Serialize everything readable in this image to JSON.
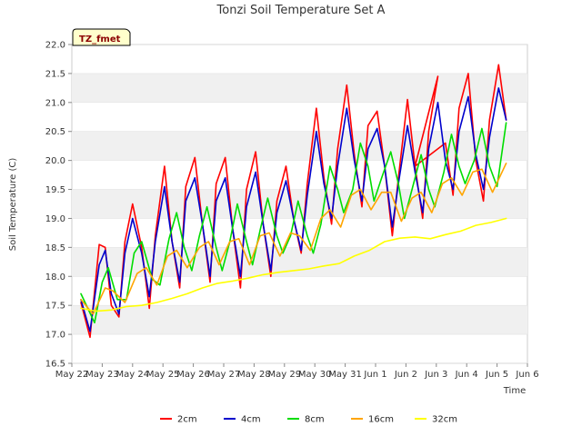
{
  "chart_data": {
    "type": "line",
    "title": "Tonzi Soil Temperature Set A",
    "xlabel": "Time",
    "ylabel": "Soil Temperature (C)",
    "tag": "TZ_fmet",
    "ylim": [
      16.5,
      22.0
    ],
    "yticks": [
      16.5,
      17.0,
      17.5,
      18.0,
      18.5,
      19.0,
      19.5,
      20.0,
      20.5,
      21.0,
      21.5,
      22.0
    ],
    "ytick_labels": [
      "16.5",
      "17.0",
      "17.5",
      "18.0",
      "18.5",
      "19.0",
      "19.5",
      "20.0",
      "20.5",
      "21.0",
      "21.5",
      "22.0"
    ],
    "xlim": [
      0,
      15
    ],
    "xticks": [
      0,
      1,
      2,
      3,
      4,
      5,
      6,
      7,
      8,
      9,
      10,
      11,
      12,
      13,
      14,
      15
    ],
    "xtick_labels": [
      "May 22",
      "May 23",
      "May 24",
      "May 25",
      "May 26",
      "May 27",
      "May 28",
      "May 29",
      "May 30",
      "May 31",
      "Jun 1",
      "Jun 2",
      "Jun 3",
      "Jun 4",
      "Jun 5",
      "Jun 6"
    ],
    "grid": "horizontal bands",
    "legend_position": "bottom",
    "series": [
      {
        "name": "2cm",
        "color": "#ff0000",
        "x": [
          0.3,
          0.6,
          0.9,
          1.1,
          1.3,
          1.55,
          1.75,
          2.0,
          2.3,
          2.55,
          2.75,
          3.05,
          3.3,
          3.55,
          3.75,
          4.05,
          4.3,
          4.55,
          4.75,
          5.05,
          5.3,
          5.55,
          5.75,
          6.05,
          6.3,
          6.55,
          6.75,
          7.05,
          7.3,
          7.55,
          7.75,
          8.05,
          8.3,
          8.55,
          8.75,
          9.05,
          9.3,
          9.55,
          9.75,
          10.05,
          10.3,
          10.55,
          10.75,
          11.05,
          11.3,
          11.55,
          11.75,
          12.05,
          11.3,
          12.3,
          12.55,
          12.75,
          13.05,
          13.3,
          13.55,
          13.75,
          14.05,
          14.3
        ],
        "y": [
          17.55,
          16.95,
          18.55,
          18.5,
          17.5,
          17.3,
          18.6,
          19.25,
          18.5,
          17.45,
          18.7,
          19.9,
          18.6,
          17.8,
          19.55,
          20.05,
          18.9,
          17.9,
          19.6,
          20.05,
          18.8,
          17.8,
          19.5,
          20.15,
          18.9,
          18.0,
          19.3,
          19.9,
          19.0,
          18.4,
          19.6,
          20.9,
          19.7,
          18.9,
          20.2,
          21.3,
          20.1,
          19.2,
          20.6,
          20.85,
          19.9,
          18.7,
          19.7,
          21.05,
          19.9,
          19.0,
          20.5,
          21.45,
          19.9,
          20.3,
          19.4,
          20.9,
          21.5,
          20.0,
          19.3,
          20.7,
          21.65,
          20.7
        ]
      },
      {
        "name": "4cm",
        "color": "#0000cc",
        "x": [
          0.3,
          0.6,
          0.9,
          1.1,
          1.3,
          1.55,
          1.75,
          2.0,
          2.3,
          2.55,
          2.75,
          3.05,
          3.3,
          3.55,
          3.75,
          4.05,
          4.3,
          4.55,
          4.75,
          5.05,
          5.3,
          5.55,
          5.75,
          6.05,
          6.3,
          6.55,
          6.75,
          7.05,
          7.3,
          7.55,
          7.75,
          8.05,
          8.3,
          8.55,
          8.75,
          9.05,
          9.3,
          9.55,
          9.75,
          10.05,
          10.3,
          10.55,
          10.75,
          11.05,
          11.3,
          11.55,
          11.75,
          12.05,
          12.3,
          12.55,
          12.75,
          13.05,
          13.3,
          13.55,
          13.75,
          14.05,
          14.3
        ],
        "y": [
          17.6,
          17.05,
          18.2,
          18.45,
          17.7,
          17.35,
          18.4,
          19.0,
          18.4,
          17.65,
          18.6,
          19.55,
          18.6,
          17.9,
          19.3,
          19.7,
          18.9,
          18.0,
          19.3,
          19.7,
          18.8,
          18.0,
          19.2,
          19.8,
          18.9,
          18.1,
          19.1,
          19.65,
          19.0,
          18.45,
          19.4,
          20.5,
          19.6,
          19.0,
          19.9,
          20.9,
          20.0,
          19.3,
          20.2,
          20.55,
          19.9,
          18.85,
          19.6,
          20.6,
          19.8,
          19.1,
          20.2,
          21.0,
          20.0,
          19.5,
          20.5,
          21.1,
          20.1,
          19.5,
          20.4,
          21.25,
          20.7
        ]
      },
      {
        "name": "8cm",
        "color": "#00dd00",
        "x": [
          0.3,
          0.75,
          1.0,
          1.2,
          1.5,
          1.8,
          2.05,
          2.3,
          2.65,
          2.9,
          3.2,
          3.45,
          3.7,
          3.95,
          4.2,
          4.45,
          4.75,
          4.95,
          5.2,
          5.45,
          5.75,
          5.95,
          6.2,
          6.45,
          6.75,
          6.95,
          7.2,
          7.45,
          7.75,
          7.95,
          8.2,
          8.5,
          8.75,
          8.95,
          9.25,
          9.5,
          9.75,
          9.95,
          10.2,
          10.5,
          10.75,
          10.95,
          11.2,
          11.5,
          11.75,
          11.95,
          12.25,
          12.5,
          12.75,
          12.95,
          13.25,
          13.5,
          13.75,
          14.0,
          14.3
        ],
        "y": [
          17.7,
          17.2,
          17.9,
          18.15,
          17.6,
          17.6,
          18.4,
          18.6,
          17.95,
          17.85,
          18.65,
          19.1,
          18.5,
          18.1,
          18.7,
          19.2,
          18.5,
          18.1,
          18.6,
          19.25,
          18.6,
          18.2,
          18.8,
          19.35,
          18.7,
          18.4,
          18.7,
          19.3,
          18.7,
          18.4,
          18.9,
          19.9,
          19.5,
          19.1,
          19.5,
          20.3,
          19.9,
          19.3,
          19.7,
          20.15,
          19.6,
          19.0,
          19.5,
          20.1,
          19.5,
          19.2,
          19.8,
          20.45,
          19.9,
          19.6,
          20.0,
          20.55,
          19.9,
          19.55,
          20.65
        ]
      },
      {
        "name": "16cm",
        "color": "#ffa500",
        "x": [
          0.3,
          0.7,
          1.1,
          1.35,
          1.75,
          2.15,
          2.45,
          2.8,
          3.15,
          3.45,
          3.8,
          4.2,
          4.5,
          4.85,
          5.2,
          5.5,
          5.85,
          6.2,
          6.5,
          6.85,
          7.2,
          7.5,
          7.85,
          8.2,
          8.5,
          8.85,
          9.2,
          9.5,
          9.85,
          10.2,
          10.5,
          10.85,
          11.2,
          11.5,
          11.85,
          12.2,
          12.5,
          12.85,
          13.2,
          13.5,
          13.85,
          14.3
        ],
        "y": [
          17.6,
          17.35,
          17.8,
          17.75,
          17.55,
          18.05,
          18.15,
          17.85,
          18.35,
          18.45,
          18.15,
          18.5,
          18.6,
          18.2,
          18.6,
          18.65,
          18.2,
          18.7,
          18.75,
          18.35,
          18.75,
          18.7,
          18.45,
          19.0,
          19.15,
          18.85,
          19.4,
          19.5,
          19.15,
          19.45,
          19.45,
          18.95,
          19.35,
          19.45,
          19.1,
          19.6,
          19.7,
          19.4,
          19.8,
          19.85,
          19.45,
          19.95
        ]
      },
      {
        "name": "32cm",
        "color": "#ffff00",
        "x": [
          0.3,
          0.8,
          1.3,
          1.8,
          2.3,
          2.8,
          3.3,
          3.8,
          4.3,
          4.8,
          5.3,
          5.8,
          6.3,
          6.8,
          7.3,
          7.8,
          8.3,
          8.8,
          9.3,
          9.8,
          10.3,
          10.8,
          11.3,
          11.8,
          12.3,
          12.8,
          13.3,
          13.8,
          14.3
        ],
        "y": [
          17.45,
          17.4,
          17.42,
          17.48,
          17.5,
          17.55,
          17.62,
          17.7,
          17.8,
          17.88,
          17.92,
          17.97,
          18.03,
          18.07,
          18.1,
          18.13,
          18.18,
          18.22,
          18.35,
          18.45,
          18.6,
          18.66,
          18.68,
          18.65,
          18.72,
          18.78,
          18.88,
          18.93,
          19.0
        ]
      }
    ]
  }
}
